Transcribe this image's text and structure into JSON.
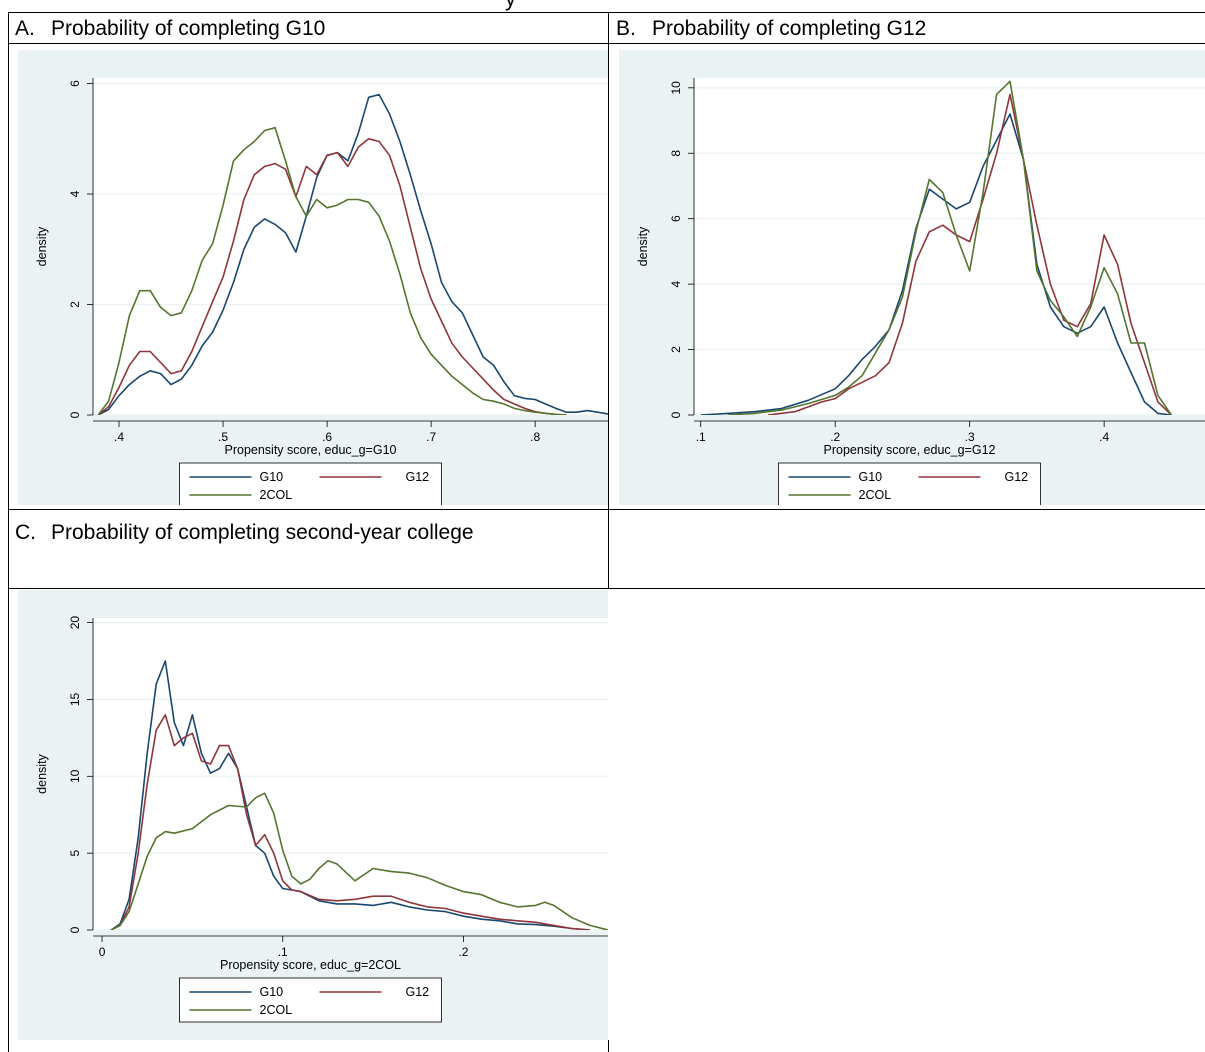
{
  "page": {
    "cut_title": "y"
  },
  "chart_data": [
    {
      "id": "A",
      "type": "line",
      "panel_letter": "A.",
      "panel_title": "Probability of completing G10",
      "xlabel": "Propensity score, educ_g=G10",
      "ylabel": "density",
      "xlim": [
        0.375,
        0.87
      ],
      "ylim": [
        0,
        6.1
      ],
      "xticks": [
        0.4,
        0.5,
        0.6,
        0.7,
        0.8
      ],
      "xtick_labels": [
        ".4",
        ".5",
        ".6",
        ".7",
        ".8"
      ],
      "yticks": [
        0,
        2,
        4,
        6
      ],
      "ytick_labels": [
        "0",
        "2",
        "4",
        "6"
      ],
      "grid": true,
      "legend_position": "bottom",
      "series": [
        {
          "name": "G10",
          "color": "#1a476f",
          "x": [
            0.38,
            0.39,
            0.4,
            0.41,
            0.42,
            0.43,
            0.44,
            0.45,
            0.46,
            0.47,
            0.48,
            0.49,
            0.5,
            0.51,
            0.52,
            0.53,
            0.54,
            0.55,
            0.56,
            0.57,
            0.58,
            0.59,
            0.6,
            0.61,
            0.62,
            0.63,
            0.64,
            0.65,
            0.66,
            0.67,
            0.68,
            0.69,
            0.7,
            0.71,
            0.72,
            0.73,
            0.74,
            0.75,
            0.76,
            0.77,
            0.78,
            0.79,
            0.8,
            0.81,
            0.82,
            0.83,
            0.84,
            0.85,
            0.86,
            0.87
          ],
          "y": [
            0.0,
            0.1,
            0.35,
            0.55,
            0.7,
            0.8,
            0.75,
            0.55,
            0.65,
            0.9,
            1.25,
            1.5,
            1.9,
            2.4,
            3.0,
            3.4,
            3.55,
            3.45,
            3.3,
            2.95,
            3.6,
            4.3,
            4.7,
            4.75,
            4.6,
            5.1,
            5.75,
            5.8,
            5.45,
            4.95,
            4.35,
            3.7,
            3.1,
            2.4,
            2.05,
            1.85,
            1.45,
            1.05,
            0.9,
            0.6,
            0.35,
            0.3,
            0.28,
            0.2,
            0.12,
            0.05,
            0.05,
            0.08,
            0.05,
            0.02
          ]
        },
        {
          "name": "G12",
          "color": "#90353b",
          "x": [
            0.38,
            0.39,
            0.4,
            0.41,
            0.42,
            0.43,
            0.44,
            0.45,
            0.46,
            0.47,
            0.48,
            0.49,
            0.5,
            0.51,
            0.52,
            0.53,
            0.54,
            0.55,
            0.56,
            0.57,
            0.58,
            0.59,
            0.6,
            0.61,
            0.62,
            0.63,
            0.64,
            0.65,
            0.66,
            0.67,
            0.68,
            0.69,
            0.7,
            0.71,
            0.72,
            0.73,
            0.74,
            0.75,
            0.76,
            0.77,
            0.78,
            0.79,
            0.8,
            0.81,
            0.82,
            0.83
          ],
          "y": [
            0.0,
            0.15,
            0.5,
            0.9,
            1.15,
            1.15,
            0.95,
            0.75,
            0.8,
            1.15,
            1.6,
            2.05,
            2.5,
            3.15,
            3.9,
            4.35,
            4.5,
            4.55,
            4.45,
            3.95,
            4.5,
            4.35,
            4.7,
            4.75,
            4.5,
            4.85,
            5.0,
            4.95,
            4.7,
            4.15,
            3.4,
            2.65,
            2.1,
            1.7,
            1.3,
            1.05,
            0.85,
            0.65,
            0.45,
            0.28,
            0.2,
            0.12,
            0.06,
            0.03,
            0.01,
            0.0
          ]
        },
        {
          "name": "2COL",
          "color": "#55752f",
          "x": [
            0.38,
            0.39,
            0.4,
            0.41,
            0.42,
            0.43,
            0.44,
            0.45,
            0.46,
            0.47,
            0.48,
            0.49,
            0.5,
            0.51,
            0.52,
            0.53,
            0.54,
            0.55,
            0.56,
            0.57,
            0.58,
            0.59,
            0.6,
            0.61,
            0.62,
            0.63,
            0.64,
            0.65,
            0.66,
            0.67,
            0.68,
            0.69,
            0.7,
            0.71,
            0.72,
            0.73,
            0.74,
            0.75,
            0.76,
            0.77,
            0.78,
            0.79,
            0.8,
            0.81,
            0.82,
            0.83
          ],
          "y": [
            0.0,
            0.25,
            0.95,
            1.8,
            2.25,
            2.25,
            1.95,
            1.8,
            1.85,
            2.25,
            2.8,
            3.1,
            3.8,
            4.6,
            4.8,
            4.95,
            5.15,
            5.2,
            4.6,
            3.95,
            3.6,
            3.9,
            3.75,
            3.8,
            3.9,
            3.9,
            3.85,
            3.6,
            3.15,
            2.55,
            1.85,
            1.4,
            1.1,
            0.9,
            0.7,
            0.55,
            0.4,
            0.28,
            0.25,
            0.2,
            0.12,
            0.08,
            0.05,
            0.03,
            0.01,
            0.0
          ]
        }
      ]
    },
    {
      "id": "B",
      "type": "line",
      "panel_letter": "B.",
      "panel_title": "Probability of completing G12",
      "xlabel": "Propensity score, educ_g=G12",
      "ylabel": "density",
      "xlim": [
        0.095,
        0.475
      ],
      "ylim": [
        0,
        10.3
      ],
      "xticks": [
        0.1,
        0.2,
        0.3,
        0.4
      ],
      "xtick_labels": [
        ".1",
        ".2",
        ".3",
        ".4"
      ],
      "yticks": [
        0,
        2,
        4,
        6,
        8,
        10
      ],
      "ytick_labels": [
        "0",
        "2",
        "4",
        "6",
        "8",
        "10"
      ],
      "grid": true,
      "legend_position": "bottom",
      "series": [
        {
          "name": "G10",
          "color": "#1a476f",
          "x": [
            0.1,
            0.12,
            0.14,
            0.16,
            0.18,
            0.2,
            0.21,
            0.22,
            0.23,
            0.24,
            0.25,
            0.26,
            0.27,
            0.28,
            0.29,
            0.3,
            0.31,
            0.32,
            0.33,
            0.34,
            0.35,
            0.36,
            0.37,
            0.38,
            0.39,
            0.4,
            0.41,
            0.42,
            0.43,
            0.44,
            0.45
          ],
          "y": [
            0.0,
            0.05,
            0.1,
            0.2,
            0.45,
            0.8,
            1.2,
            1.7,
            2.1,
            2.6,
            3.8,
            5.7,
            6.9,
            6.6,
            6.3,
            6.5,
            7.6,
            8.4,
            9.2,
            7.8,
            4.6,
            3.3,
            2.7,
            2.5,
            2.7,
            3.3,
            2.2,
            1.3,
            0.4,
            0.05,
            0.0
          ]
        },
        {
          "name": "G12",
          "color": "#90353b",
          "x": [
            0.15,
            0.17,
            0.19,
            0.2,
            0.21,
            0.22,
            0.23,
            0.24,
            0.25,
            0.26,
            0.27,
            0.28,
            0.29,
            0.3,
            0.31,
            0.32,
            0.33,
            0.34,
            0.35,
            0.36,
            0.37,
            0.38,
            0.39,
            0.4,
            0.41,
            0.42,
            0.43,
            0.44,
            0.45
          ],
          "y": [
            0.0,
            0.1,
            0.4,
            0.5,
            0.8,
            1.0,
            1.2,
            1.6,
            2.8,
            4.7,
            5.6,
            5.8,
            5.5,
            5.3,
            6.6,
            8.0,
            9.8,
            7.8,
            5.8,
            4.0,
            2.9,
            2.7,
            3.4,
            5.5,
            4.6,
            2.8,
            1.6,
            0.4,
            0.0
          ]
        },
        {
          "name": "2COL",
          "color": "#55752f",
          "x": [
            0.12,
            0.14,
            0.16,
            0.18,
            0.2,
            0.21,
            0.22,
            0.23,
            0.24,
            0.25,
            0.26,
            0.27,
            0.28,
            0.29,
            0.3,
            0.31,
            0.32,
            0.33,
            0.34,
            0.35,
            0.36,
            0.37,
            0.38,
            0.39,
            0.4,
            0.41,
            0.42,
            0.43,
            0.44,
            0.45
          ],
          "y": [
            0.0,
            0.05,
            0.15,
            0.35,
            0.6,
            0.85,
            1.2,
            1.9,
            2.6,
            3.6,
            5.6,
            7.2,
            6.8,
            5.5,
            4.4,
            6.8,
            9.8,
            10.2,
            7.8,
            4.4,
            3.5,
            3.0,
            2.4,
            3.3,
            4.5,
            3.7,
            2.2,
            2.2,
            0.6,
            0.0
          ]
        }
      ]
    },
    {
      "id": "C",
      "type": "line",
      "panel_letter": "C.",
      "panel_title": "Probability of completing second-year college",
      "xlabel": "Propensity score, educ_g=2COL",
      "ylabel": "density",
      "xlim": [
        -0.005,
        0.28
      ],
      "ylim": [
        0,
        20.3
      ],
      "xticks": [
        0,
        0.1,
        0.2
      ],
      "xtick_labels": [
        "0",
        ".1",
        ".2"
      ],
      "yticks": [
        0,
        5,
        10,
        15,
        20
      ],
      "ytick_labels": [
        "0",
        "5",
        "10",
        "15",
        "20"
      ],
      "grid": true,
      "legend_position": "bottom",
      "series": [
        {
          "name": "G10",
          "color": "#1a476f",
          "x": [
            0.005,
            0.01,
            0.015,
            0.02,
            0.025,
            0.03,
            0.035,
            0.04,
            0.045,
            0.05,
            0.055,
            0.06,
            0.065,
            0.07,
            0.075,
            0.08,
            0.085,
            0.09,
            0.095,
            0.1,
            0.105,
            0.11,
            0.12,
            0.13,
            0.14,
            0.15,
            0.16,
            0.17,
            0.18,
            0.19,
            0.2,
            0.21,
            0.22,
            0.23,
            0.24,
            0.25,
            0.26,
            0.27
          ],
          "y": [
            0.0,
            0.4,
            2.0,
            6.0,
            11.5,
            16.0,
            17.5,
            13.5,
            12.0,
            14.0,
            11.5,
            10.2,
            10.5,
            11.5,
            10.5,
            8.0,
            5.5,
            5.0,
            3.5,
            2.7,
            2.6,
            2.5,
            1.9,
            1.7,
            1.7,
            1.6,
            1.8,
            1.5,
            1.3,
            1.2,
            0.9,
            0.7,
            0.6,
            0.4,
            0.35,
            0.25,
            0.1,
            0.0
          ]
        },
        {
          "name": "G12",
          "color": "#90353b",
          "x": [
            0.005,
            0.01,
            0.015,
            0.02,
            0.025,
            0.03,
            0.035,
            0.04,
            0.045,
            0.05,
            0.055,
            0.06,
            0.065,
            0.07,
            0.075,
            0.08,
            0.085,
            0.09,
            0.095,
            0.1,
            0.105,
            0.11,
            0.12,
            0.13,
            0.14,
            0.15,
            0.16,
            0.17,
            0.18,
            0.19,
            0.2,
            0.21,
            0.22,
            0.23,
            0.24,
            0.25,
            0.26,
            0.27
          ],
          "y": [
            0.0,
            0.3,
            1.5,
            5.0,
            9.5,
            13.0,
            14.0,
            12.0,
            12.5,
            12.8,
            11.0,
            10.8,
            12.0,
            12.0,
            10.5,
            7.5,
            5.5,
            6.2,
            5.0,
            3.2,
            2.6,
            2.5,
            2.0,
            1.9,
            2.0,
            2.2,
            2.2,
            1.8,
            1.5,
            1.4,
            1.1,
            0.9,
            0.7,
            0.6,
            0.5,
            0.3,
            0.1,
            0.0
          ]
        },
        {
          "name": "2COL",
          "color": "#55752f",
          "x": [
            0.005,
            0.01,
            0.015,
            0.02,
            0.025,
            0.03,
            0.035,
            0.04,
            0.05,
            0.06,
            0.07,
            0.08,
            0.085,
            0.09,
            0.095,
            0.1,
            0.105,
            0.11,
            0.115,
            0.12,
            0.125,
            0.13,
            0.14,
            0.15,
            0.16,
            0.17,
            0.18,
            0.19,
            0.2,
            0.21,
            0.22,
            0.23,
            0.24,
            0.245,
            0.25,
            0.26,
            0.27,
            0.28
          ],
          "y": [
            0.0,
            0.3,
            1.2,
            3.0,
            4.8,
            6.0,
            6.4,
            6.3,
            6.6,
            7.5,
            8.1,
            8.0,
            8.6,
            8.9,
            7.6,
            5.2,
            3.5,
            3.0,
            3.3,
            4.0,
            4.5,
            4.3,
            3.2,
            4.0,
            3.8,
            3.7,
            3.4,
            2.9,
            2.5,
            2.3,
            1.8,
            1.5,
            1.6,
            1.8,
            1.6,
            0.8,
            0.3,
            0.0
          ]
        }
      ]
    }
  ]
}
